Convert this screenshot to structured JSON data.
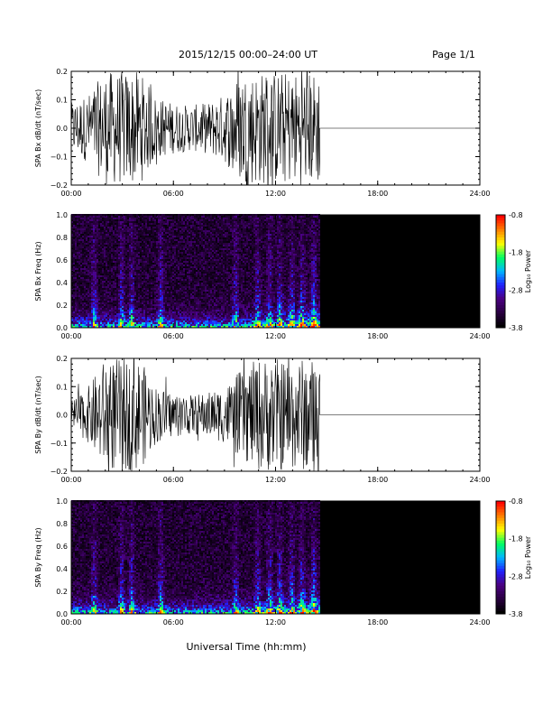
{
  "header": {
    "date_range": "2015/12/15   00:00–24:00 UT",
    "page": "Page 1/1"
  },
  "xaxis": {
    "label": "Universal Time (hh:mm)",
    "ticks": [
      "00:00",
      "06:00",
      "12:00",
      "18:00",
      "24:00"
    ],
    "range_hours": [
      0,
      24
    ]
  },
  "colors": {
    "background": "#ffffff",
    "trace": "#000000",
    "colormap": [
      "#000000",
      "#2a0042",
      "#4b0082",
      "#2020ff",
      "#00b8ff",
      "#00ff60",
      "#ffff00",
      "#ff8000",
      "#ff0000"
    ]
  },
  "chart_data": [
    {
      "type": "line",
      "name": "SPA Bx dB/dt",
      "ylabel": "SPA Bx dB/dt (nT/sec)",
      "ylim": [
        -0.2,
        0.2
      ],
      "yticks": [
        "0.2",
        "0.1",
        "0.0",
        "−0.1",
        "−0.2"
      ],
      "data_end_hour": 14.6,
      "flat_value": 0.0,
      "envelope": {
        "hours": [
          0,
          1,
          2,
          3,
          4,
          5,
          6,
          7,
          8,
          9,
          10,
          11,
          12,
          13,
          14.6
        ],
        "amplitude": [
          0.09,
          0.12,
          0.2,
          0.2,
          0.2,
          0.11,
          0.09,
          0.08,
          0.09,
          0.12,
          0.2,
          0.2,
          0.2,
          0.2,
          0.2
        ]
      }
    },
    {
      "type": "heatmap",
      "name": "SPA Bx Freq",
      "ylabel": "SPA Bx Freq (Hz)",
      "ylim": [
        0,
        1.0
      ],
      "yticks": [
        "1.0",
        "0.8",
        "0.6",
        "0.4",
        "0.2",
        "0.0"
      ],
      "data_end_hour": 14.6,
      "colorbar": {
        "label": "Log₁₀ Power",
        "range": [
          -3.8,
          -0.8
        ],
        "ticks": [
          "-0.8",
          "-1.8",
          "-2.8",
          "-3.8"
        ]
      }
    },
    {
      "type": "line",
      "name": "SPA By dB/dt",
      "ylabel": "SPA By dB/dt (nT/sec)",
      "ylim": [
        -0.2,
        0.2
      ],
      "yticks": [
        "0.2",
        "0.1",
        "0.0",
        "−0.1",
        "−0.2"
      ],
      "data_end_hour": 14.6,
      "flat_value": 0.0,
      "envelope": {
        "hours": [
          0,
          1,
          2,
          3,
          4,
          5,
          6,
          7,
          8,
          9,
          10,
          11,
          12,
          13,
          14.6
        ],
        "amplitude": [
          0.05,
          0.1,
          0.2,
          0.2,
          0.2,
          0.1,
          0.08,
          0.07,
          0.08,
          0.1,
          0.16,
          0.2,
          0.2,
          0.2,
          0.2
        ]
      }
    },
    {
      "type": "heatmap",
      "name": "SPA By Freq",
      "ylabel": "SPA By Freq (Hz)",
      "ylim": [
        0,
        1.0
      ],
      "yticks": [
        "1.0",
        "0.8",
        "0.6",
        "0.4",
        "0.2",
        "0.0"
      ],
      "data_end_hour": 14.6,
      "colorbar": {
        "label": "Log₁₀ Power",
        "range": [
          -3.8,
          -0.8
        ],
        "ticks": [
          "-0.8",
          "-1.8",
          "-2.8",
          "-3.8"
        ]
      }
    }
  ]
}
